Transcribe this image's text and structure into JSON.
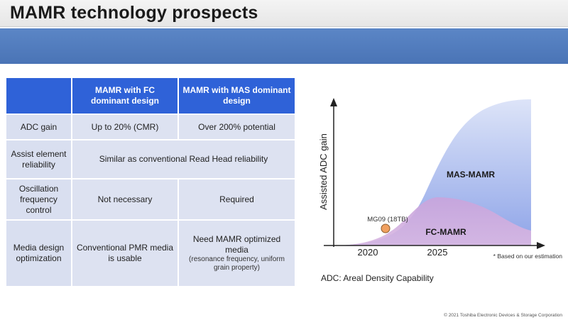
{
  "title": "MAMR technology prospects",
  "table": {
    "headers": [
      "",
      "MAMR with FC dominant design",
      "MAMR with MAS dominant design"
    ],
    "rows": [
      {
        "label": "ADC gain",
        "fc": "Up to 20% (CMR)",
        "mas": "Over 200% potential"
      },
      {
        "label": "Assist element reliability",
        "merged": "Similar as conventional Read Head reliability"
      },
      {
        "label": "Oscillation frequency control",
        "fc": "Not necessary",
        "mas": "Required"
      },
      {
        "label": "Media design optimization",
        "fc": "Conventional PMR media is usable",
        "mas": "Need MAMR optimized media",
        "mas_note": "(resonance frequency, uniform grain property)"
      }
    ]
  },
  "chart_data": {
    "type": "area",
    "ylabel": "Assisted ADC gain",
    "xlabel": "",
    "x_ticks": [
      "2020",
      "2025"
    ],
    "series": [
      {
        "name": "MAS-MAMR",
        "color": "#8fa6e6"
      },
      {
        "name": "FC-MAMR",
        "color": "#c9a3d6"
      }
    ],
    "annotation": "MG09 (18TB)",
    "marker_color": "#f0a060",
    "footnote": "* Based on our estimation"
  },
  "adc_note": "ADC: Areal Density Capability",
  "footer": "© 2021 Toshiba Electronic Devices & Storage Corporation"
}
